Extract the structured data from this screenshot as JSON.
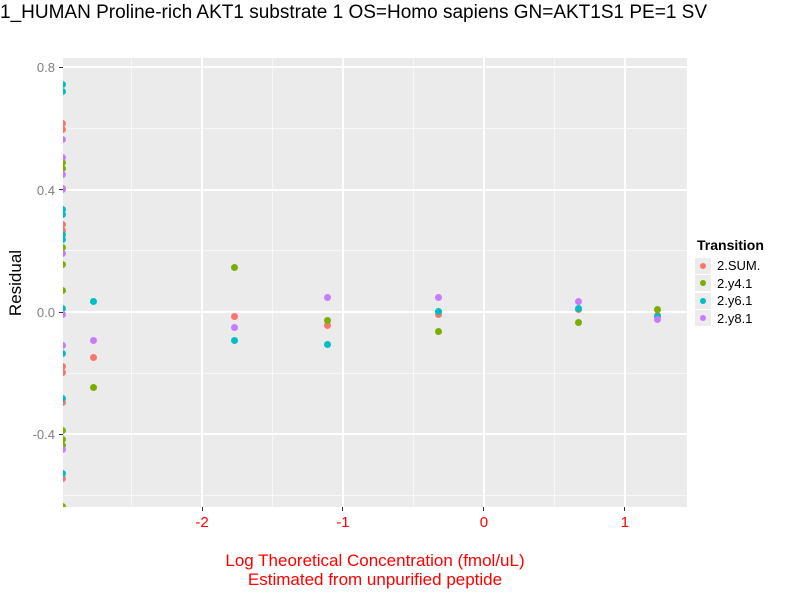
{
  "chart_data": {
    "type": "scatter",
    "title": "1_HUMAN Proline-rich AKT1 substrate 1 OS=Homo sapiens GN=AKT1S1 PE=1 SV",
    "ylabel": "Residual",
    "xlabel_line1": "Log Theoretical Concentration (fmol/uL)",
    "xlabel_line2": "Estimated from unpurified peptide",
    "xlim": [
      -2.986,
      1.44
    ],
    "ylim": [
      -0.637,
      0.83
    ],
    "x_ticks": [
      -2,
      -1,
      0,
      1
    ],
    "x_tick_labels": [
      "-2",
      "-1",
      "0",
      "1"
    ],
    "y_ticks": [
      0.8,
      0.4,
      0.0,
      -0.4
    ],
    "y_tick_labels": [
      "0.8",
      "0.4",
      "0.0",
      "-0.4"
    ],
    "x_minor": [
      -2.5,
      -1.5,
      -0.5,
      0.5
    ],
    "y_minor": [
      0.6,
      0.2,
      -0.2,
      -0.6
    ],
    "grid": true,
    "colors": {
      "panel_bg": "#EBEBEB",
      "x_axis_text": "#FF0000",
      "y_axis_text": "#7F7F7F",
      "title_text": "#000000"
    },
    "legend": {
      "title": "Transition",
      "position": "right",
      "entries": [
        {
          "label": "2.SUM.",
          "color": "#F8766D"
        },
        {
          "label": "2.y4.1",
          "color": "#7CAE00"
        },
        {
          "label": "2.y6.1",
          "color": "#00BFC4"
        },
        {
          "label": "2.y8.1",
          "color": "#C77CFF"
        }
      ]
    },
    "series": [
      {
        "name": "2.SUM.",
        "color": "#F8766D",
        "points": [
          [
            -2.99,
            0.615
          ],
          [
            -2.99,
            0.595
          ],
          [
            -2.99,
            0.405
          ],
          [
            -2.99,
            0.285
          ],
          [
            -2.99,
            0.268
          ],
          [
            -2.99,
            -0.177
          ],
          [
            -2.99,
            -0.197
          ],
          [
            -2.99,
            -0.297
          ],
          [
            -2.99,
            -0.543
          ],
          [
            -2.77,
            -0.15
          ],
          [
            -1.77,
            -0.016
          ],
          [
            -1.11,
            -0.043
          ],
          [
            -0.32,
            -0.008
          ],
          [
            0.67,
            0.008
          ],
          [
            1.23,
            -0.012
          ]
        ]
      },
      {
        "name": "2.y4.1",
        "color": "#7CAE00",
        "points": [
          [
            -2.99,
            0.49
          ],
          [
            -2.99,
            0.468
          ],
          [
            -2.99,
            0.21
          ],
          [
            -2.99,
            0.155
          ],
          [
            -2.99,
            0.07
          ],
          [
            -2.99,
            -0.386
          ],
          [
            -2.99,
            -0.417
          ],
          [
            -2.99,
            -0.435
          ],
          [
            -2.99,
            -0.635
          ],
          [
            -2.77,
            -0.245
          ],
          [
            -1.77,
            0.144
          ],
          [
            -1.11,
            -0.029
          ],
          [
            -0.32,
            -0.062
          ],
          [
            0.67,
            -0.033
          ],
          [
            1.23,
            0.007
          ]
        ]
      },
      {
        "name": "2.y6.1",
        "color": "#00BFC4",
        "points": [
          [
            -2.99,
            0.745
          ],
          [
            -2.99,
            0.719
          ],
          [
            -2.99,
            0.335
          ],
          [
            -2.99,
            0.318
          ],
          [
            -2.99,
            0.253
          ],
          [
            -2.99,
            0.236
          ],
          [
            -2.99,
            0.011
          ],
          [
            -2.99,
            -0.134
          ],
          [
            -2.99,
            -0.281
          ],
          [
            -2.99,
            -0.526
          ],
          [
            -2.77,
            0.033
          ],
          [
            -1.77,
            -0.092
          ],
          [
            -1.11,
            -0.105
          ],
          [
            -0.32,
            0.003
          ],
          [
            0.67,
            0.01
          ],
          [
            1.23,
            -0.016
          ]
        ]
      },
      {
        "name": "2.y8.1",
        "color": "#C77CFF",
        "points": [
          [
            -2.99,
            0.565
          ],
          [
            -2.99,
            0.505
          ],
          [
            -2.99,
            0.45
          ],
          [
            -2.99,
            0.4
          ],
          [
            -2.99,
            0.19
          ],
          [
            -2.99,
            -0.007
          ],
          [
            -2.99,
            -0.11
          ],
          [
            -2.99,
            -0.45
          ],
          [
            -2.77,
            -0.092
          ],
          [
            -1.77,
            -0.052
          ],
          [
            -1.11,
            0.049
          ],
          [
            -0.32,
            0.046
          ],
          [
            0.67,
            0.036
          ],
          [
            1.23,
            -0.026
          ]
        ]
      }
    ]
  }
}
